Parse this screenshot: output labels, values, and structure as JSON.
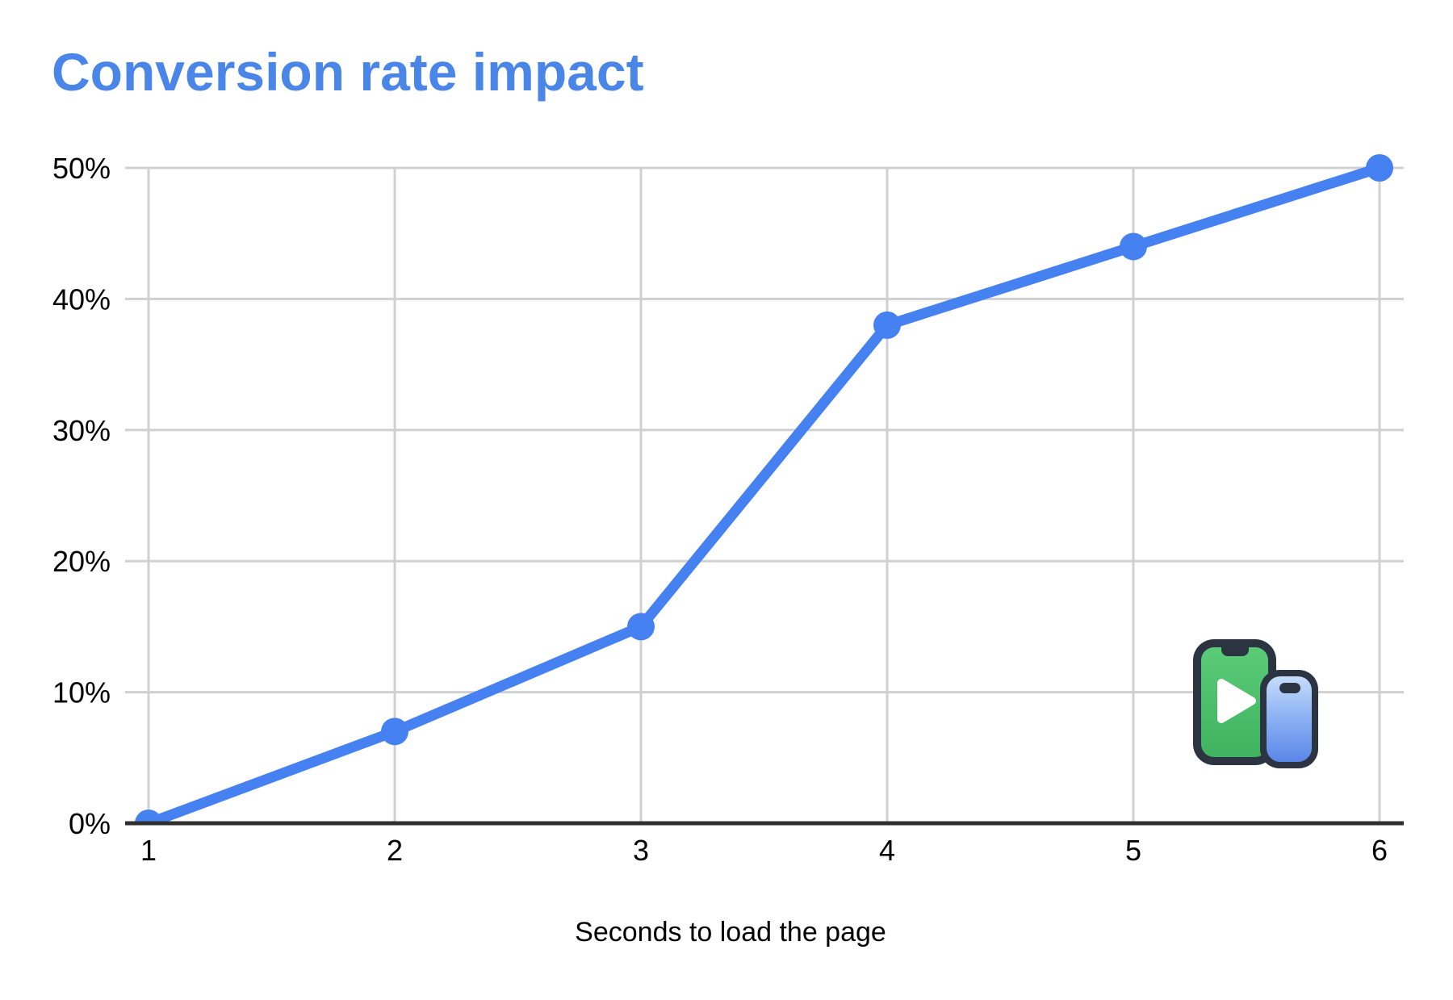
{
  "header": {
    "title": "Conversion rate impact",
    "title_color": "#4a86e8"
  },
  "chart_data": {
    "type": "line",
    "title": "Conversion rate impact",
    "xlabel": "Seconds to load the page",
    "ylabel": "",
    "categories": [
      "1",
      "2",
      "3",
      "4",
      "5",
      "6"
    ],
    "x": [
      1,
      2,
      3,
      4,
      5,
      6
    ],
    "series": [
      {
        "name": "Conversion rate",
        "values": [
          0,
          7,
          15,
          38,
          44,
          50
        ]
      }
    ],
    "values_unit": "%",
    "ylim": [
      0,
      50
    ],
    "y_ticks": [
      0,
      10,
      20,
      30,
      40,
      50
    ],
    "y_tick_labels": [
      "0%",
      "10%",
      "20%",
      "30%",
      "40%",
      "50%"
    ],
    "grid": true,
    "legend": "none",
    "marker": "circle"
  },
  "styles": {
    "line_color": "#4681F1",
    "marker_color": "#4681F1",
    "gridline_color": "#d0d0d0",
    "axis_color": "#2f2f2f",
    "label_color": "#000000",
    "background": "#ffffff"
  },
  "icon": {
    "name": "mobile-video-devices",
    "frame_dark": "#2B3440",
    "screen_green_top": "#5BCB77",
    "screen_green_bottom": "#3FB360",
    "screen_blue_top": "#C7DCFB",
    "screen_blue_mid": "#8FB4F4",
    "screen_blue_bottom": "#5B86E8",
    "play_color": "#ffffff"
  }
}
